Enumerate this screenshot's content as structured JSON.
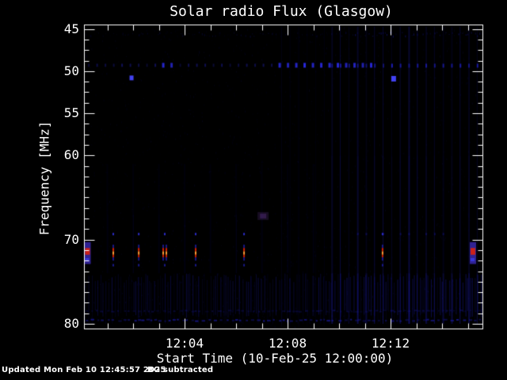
{
  "chart_data": {
    "type": "heatmap",
    "subtype": "radio-spectrogram",
    "title": "Solar radio Flux (Glasgow)",
    "xlabel": "Start Time (10-Feb-25 12:00:00)",
    "ylabel": "Frequency [MHz]",
    "x_start_time": "12:00:00",
    "x_end_time": "12:15:30",
    "x_tick_labels": [
      "12:04",
      "12:08",
      "12:12"
    ],
    "x_ticks_min": [
      4,
      8,
      12
    ],
    "x_minor_step_min": 1,
    "ylim": [
      45,
      80
    ],
    "y_inverted": true,
    "y_tick_labels": [
      "45",
      "50",
      "55",
      "60",
      "70",
      "80"
    ],
    "y_ticks": [
      45,
      50,
      55,
      60,
      70,
      80
    ],
    "y_minor_step_mhz": 1.25,
    "background": "#000000",
    "axis_color": "#ffffff",
    "grid": false,
    "legend": "none",
    "features": {
      "noise": {
        "color": "#1e1ea0",
        "count": 2600
      },
      "top_row": {
        "freq": 45.6,
        "color": "#1c1cb0"
      },
      "minute_streaks": {
        "t_start": 0,
        "t_end": 9,
        "step": 1,
        "color": "#1c1cb0"
      },
      "bottom_band": {
        "f_start": 74.0,
        "f_end": 79.3,
        "color": "#1c1cb0"
      },
      "bottom_dot_rows": [
        {
          "freq": 79.5,
          "alpha": 0.55
        },
        {
          "freq": 78.4,
          "alpha": 0.25
        }
      ],
      "row_50mhz": {
        "freq": 49.3,
        "t_start": 0.25,
        "t_end": 11.3,
        "step": 0.323,
        "bright_ranges": [
          [
            3.0,
            3.5
          ],
          [
            7.6,
            11.3
          ]
        ],
        "color": "#2a2ae6"
      },
      "row_69mhz": {
        "freq": 69.3,
        "times": [
          1.23,
          2.22,
          3.23,
          4.43,
          6.31,
          11.69
        ],
        "color": "#3232e6"
      },
      "spikes_71mhz": {
        "freq_top": 70.6,
        "freq_bottom": 72.5,
        "dot_freq": 72.9,
        "times": [
          1.23,
          2.22,
          3.23,
          4.43,
          6.31,
          11.69
        ],
        "double_bar_times": [
          3.23
        ],
        "colors": {
          "edge": "#2222bb",
          "red": "#dd2200",
          "core": "#ff9933"
        }
      },
      "edge_blobs": {
        "times": [
          -0.05,
          15.2
        ],
        "freq_center": 71.5,
        "colors": {
          "body": "#3828ae",
          "core": "#d42212",
          "tail": "#3a3ae0"
        }
      },
      "bright_points": [
        {
          "t": 1.94,
          "f": 50.8,
          "w": 5,
          "h": 6
        },
        {
          "t": 12.12,
          "f": 50.9,
          "w": 6,
          "h": 7
        }
      ],
      "bright_point_color": "#4646ff",
      "smudge": {
        "t": 7.05,
        "f": 67.2,
        "color": "#8246be"
      },
      "right_streaks": {
        "t_start": 9.7,
        "t_end": 15.45,
        "step": 0.3323,
        "faint_t_start": 7.75,
        "color": "#2020c8"
      }
    }
  },
  "footer": {
    "updated": "Updated Mon Feb 10 12:45:57 2025",
    "bg_note": "BG subtracted"
  }
}
